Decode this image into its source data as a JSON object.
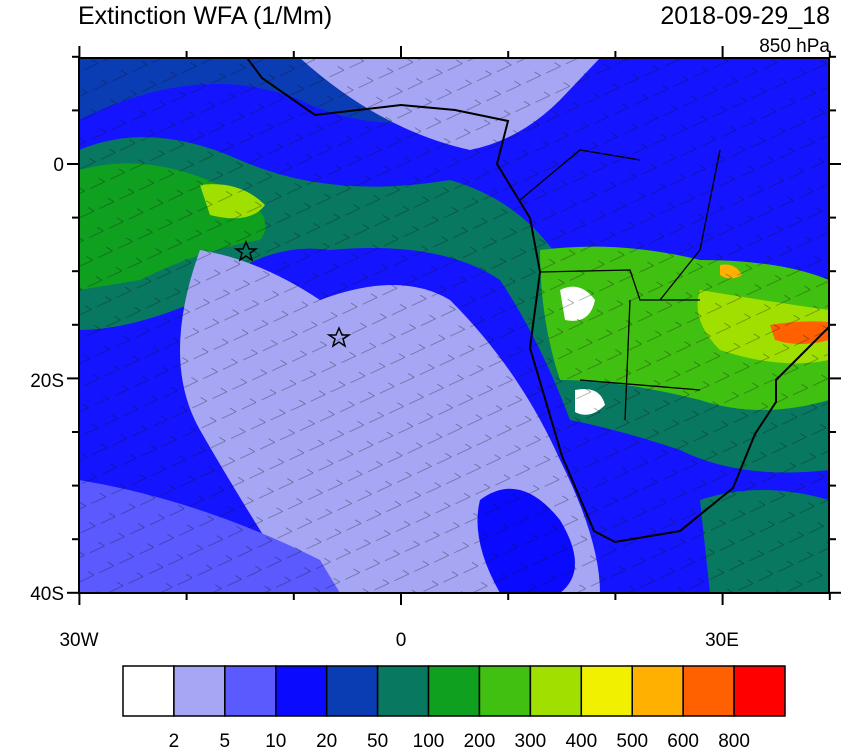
{
  "header": {
    "title": "Extinction WFA (1/Mm)",
    "date": "2018-09-29_18",
    "level": "850 hPa"
  },
  "axes": {
    "lat_labels": [
      "0",
      "20S",
      "40S"
    ],
    "lon_labels": [
      "30W",
      "0",
      "30E"
    ]
  },
  "colorbar": {
    "colors": [
      "#ffffff",
      "#a6a6f5",
      "#5a5aff",
      "#0a0aff",
      "#0a3cb4",
      "#087860",
      "#10a020",
      "#40c010",
      "#a0e000",
      "#f0f000",
      "#ffb000",
      "#ff6000",
      "#ff0000"
    ],
    "levels": [
      2,
      5,
      10,
      20,
      50,
      100,
      200,
      300,
      400,
      500,
      600,
      800
    ]
  }
}
